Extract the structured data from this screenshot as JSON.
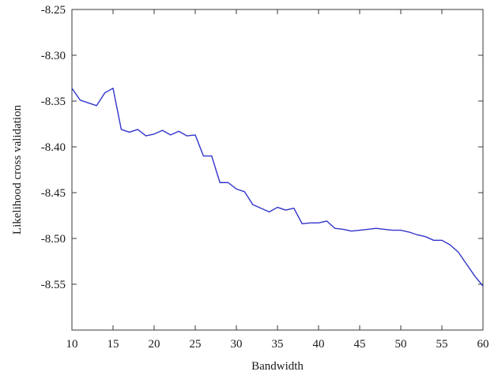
{
  "chart_data": {
    "type": "line",
    "title": "",
    "xlabel": "Bandwidth",
    "ylabel": "Likelihood cross validation",
    "xlim": [
      10,
      60
    ],
    "ylim": [
      -8.6,
      -8.25
    ],
    "x_ticks": [
      10,
      15,
      20,
      25,
      30,
      35,
      40,
      45,
      50,
      55,
      60
    ],
    "x_tick_labels": [
      "10",
      "15",
      "20",
      "25",
      "30",
      "35",
      "40",
      "45",
      "50",
      "55",
      "60"
    ],
    "y_ticks": [
      -8.25,
      -8.3,
      -8.35,
      -8.4,
      -8.45,
      -8.5,
      -8.55
    ],
    "y_tick_labels": [
      "-8.25",
      "-8.30",
      "-8.35",
      "-8.40",
      "-8.45",
      "-8.50",
      "-8.55"
    ],
    "grid": false,
    "legend": "none",
    "series_color": "#3333cc",
    "series": [
      {
        "x": [
          10,
          11,
          12,
          13,
          14,
          15,
          16,
          17,
          18,
          19,
          20,
          21,
          22,
          23,
          24,
          25,
          26,
          27,
          28,
          29,
          30,
          31,
          32,
          33,
          34,
          35,
          36,
          37,
          38,
          39,
          40,
          41,
          42,
          43,
          44,
          45,
          46,
          47,
          48,
          49,
          50,
          51,
          52,
          53,
          54,
          55,
          56,
          57,
          58,
          59,
          60
        ],
        "y": [
          -8.336,
          -8.349,
          -8.352,
          -8.355,
          -8.341,
          -8.336,
          -8.381,
          -8.384,
          -8.381,
          -8.388,
          -8.386,
          -8.382,
          -8.387,
          -8.383,
          -8.388,
          -8.387,
          -8.41,
          -8.41,
          -8.439,
          -8.439,
          -8.446,
          -8.449,
          -8.463,
          -8.467,
          -8.471,
          -8.466,
          -8.469,
          -8.467,
          -8.484,
          -8.483,
          -8.483,
          -8.481,
          -8.489,
          -8.49,
          -8.492,
          -8.491,
          -8.49,
          -8.489,
          -8.49,
          -8.491,
          -8.491,
          -8.493,
          -8.496,
          -8.498,
          -8.502,
          -8.502,
          -8.507,
          -8.515,
          -8.528,
          -8.541,
          -8.552
        ]
      }
    ]
  }
}
